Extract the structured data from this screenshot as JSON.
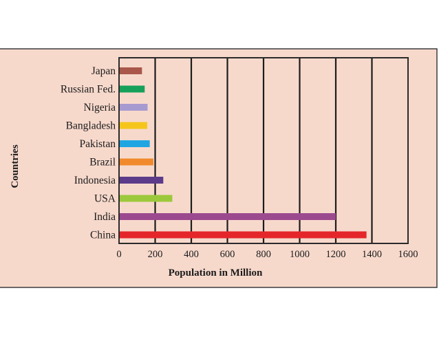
{
  "chart_data": {
    "type": "bar",
    "orientation": "horizontal",
    "title": "",
    "xlabel": "Population in Million",
    "ylabel": "Countries",
    "xlim": [
      0,
      1600
    ],
    "xticks": [
      0,
      200,
      400,
      600,
      800,
      1000,
      1200,
      1400,
      1600
    ],
    "grid": "vertical lines at every tick",
    "categories": [
      "Japan",
      "Russian Fed.",
      "Nigeria",
      "Bangladesh",
      "Pakistan",
      "Brazil",
      "Indonesia",
      "USA",
      "India",
      "China"
    ],
    "values": [
      127,
      142,
      158,
      156,
      170,
      190,
      245,
      295,
      1200,
      1370
    ],
    "colors": [
      "#a9574a",
      "#17a05a",
      "#a79ad0",
      "#f5c51c",
      "#1fa6e2",
      "#f08a2c",
      "#5b3b8a",
      "#9cc83b",
      "#9b4a8f",
      "#e4262a"
    ],
    "background": "#f7d9cc"
  }
}
